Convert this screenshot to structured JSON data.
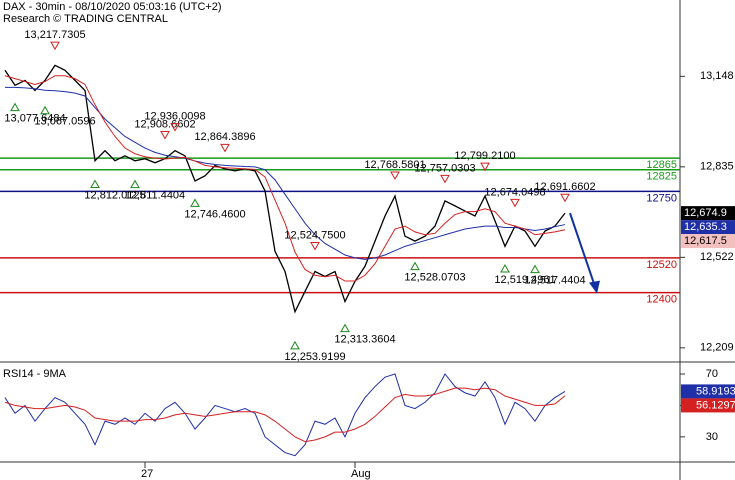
{
  "chart_data": [
    {
      "type": "line",
      "title": "DAX - 30min - 08/10/2020 05:03:16 (UTC+2)",
      "subtitle": "Research © TRADING CENTRAL",
      "categories": [
        null,
        null,
        null,
        null,
        null,
        null,
        null,
        null,
        null,
        null,
        null,
        null,
        null,
        null,
        "27",
        null,
        null,
        null,
        null,
        null,
        null,
        null,
        null,
        null,
        null,
        null,
        null,
        null,
        null,
        null,
        null,
        null,
        null,
        null,
        null,
        "Aug",
        null,
        null,
        null,
        null,
        null,
        null,
        null,
        null,
        null,
        null,
        null,
        null,
        null,
        null,
        null,
        null,
        null,
        null,
        null,
        null,
        null
      ],
      "series": [
        {
          "color": "#000000",
          "label_color": "#ffffff",
          "values": [
            13169,
            13117,
            13134,
            13099,
            13134,
            13186,
            13169,
            13134,
            13099,
            12856,
            12891,
            12856,
            12873,
            12856,
            12863,
            12849,
            12863,
            12891,
            12873,
            12786,
            12804,
            12839,
            12828,
            12821,
            12828,
            12821,
            12752,
            12543,
            12473,
            12334,
            12404,
            12473,
            12456,
            12473,
            12369,
            12439,
            12491,
            12578,
            12665,
            12734,
            12595,
            12578,
            12595,
            12630,
            12717,
            12700,
            12682,
            12665,
            12734,
            12648,
            12560,
            12630,
            12613,
            12560,
            12613,
            12630,
            12674.9
          ],
          "value_labels": [
            null,
            null,
            null,
            null,
            null,
            null,
            null,
            null,
            null,
            null,
            null,
            null,
            null,
            null,
            null,
            null,
            null,
            null,
            null,
            null,
            null,
            null,
            null,
            null,
            null,
            null,
            null,
            null,
            null,
            null,
            null,
            null,
            null,
            null,
            null,
            null,
            null,
            null,
            null,
            null,
            null,
            null,
            null,
            null,
            null,
            null,
            null,
            null,
            null,
            null,
            null,
            null,
            null,
            null,
            null,
            null,
            "12,674.9"
          ]
        },
        {
          "color": "#1f2fa8",
          "label_color": "#ffffff",
          "values": [
            13110,
            13110,
            13108,
            13105,
            13100,
            13098,
            13095,
            13090,
            13080,
            13040,
            13000,
            12970,
            12940,
            12920,
            12900,
            12885,
            12875,
            12870,
            12865,
            12855,
            12848,
            12843,
            12840,
            12838,
            12836,
            12835,
            12825,
            12790,
            12740,
            12690,
            12640,
            12600,
            12570,
            12550,
            12530,
            12520,
            12515,
            12520,
            12530,
            12545,
            12560,
            12570,
            12580,
            12590,
            12600,
            12610,
            12620,
            12625,
            12630,
            12630,
            12625,
            12625,
            12620,
            12615,
            12620,
            12628,
            12635.3
          ],
          "value_labels": [
            null,
            null,
            null,
            null,
            null,
            null,
            null,
            null,
            null,
            null,
            null,
            null,
            null,
            null,
            null,
            null,
            null,
            null,
            null,
            null,
            null,
            null,
            null,
            null,
            null,
            null,
            null,
            null,
            null,
            null,
            null,
            null,
            null,
            null,
            null,
            null,
            null,
            null,
            null,
            null,
            null,
            null,
            null,
            null,
            null,
            null,
            null,
            null,
            null,
            null,
            null,
            null,
            null,
            null,
            null,
            null,
            "12,635.3"
          ]
        },
        {
          "color": "#d42020",
          "label_color": "#000000",
          "values": [
            13150,
            13140,
            13130,
            13120,
            13130,
            13150,
            13150,
            13140,
            13120,
            13050,
            12990,
            12940,
            12900,
            12880,
            12870,
            12865,
            12862,
            12865,
            12868,
            12855,
            12840,
            12835,
            12832,
            12830,
            12828,
            12826,
            12800,
            12720,
            12640,
            12540,
            12480,
            12460,
            12455,
            12460,
            12440,
            12440,
            12460,
            12500,
            12560,
            12620,
            12630,
            12610,
            12600,
            12605,
            12640,
            12670,
            12680,
            12680,
            12690,
            12680,
            12640,
            12630,
            12620,
            12600,
            12605,
            12610,
            12617.5
          ],
          "value_labels": [
            null,
            null,
            null,
            null,
            null,
            null,
            null,
            null,
            null,
            null,
            null,
            null,
            null,
            null,
            null,
            null,
            null,
            null,
            null,
            null,
            null,
            null,
            null,
            null,
            null,
            null,
            null,
            null,
            null,
            null,
            null,
            null,
            null,
            null,
            null,
            null,
            null,
            null,
            null,
            null,
            null,
            null,
            null,
            null,
            null,
            null,
            null,
            null,
            null,
            null,
            null,
            null,
            null,
            null,
            null,
            null,
            "12,617.5"
          ]
        }
      ],
      "ylim": [
        12160,
        13412
      ],
      "yticks": [
        {
          "value": 12209,
          "label": "12,209"
        },
        {
          "value": 12522,
          "label": "12,522"
        },
        {
          "value": 12835,
          "label": "12,835"
        },
        {
          "value": 13148,
          "label": "13,148"
        }
      ],
      "levels": [
        {
          "value": 12865,
          "color": "#1a9a1a"
        },
        {
          "value": 12825,
          "color": "#1a9a1a"
        },
        {
          "value": 12750,
          "color": "#10108a"
        },
        {
          "value": 12520,
          "color": "#cc1010"
        },
        {
          "value": 12400,
          "color": "#cc1010"
        }
      ],
      "annotations": [
        {
          "x": 5,
          "value": 13217.7305,
          "label": "13,217.7305",
          "kind": "high"
        },
        {
          "x": 1,
          "value": 13077.6484,
          "label": "13,077.6484",
          "kind": "low"
        },
        {
          "x": 4,
          "value": 13067.0596,
          "label": "13,067.0596",
          "kind": "low"
        },
        {
          "x": 9,
          "value": 12812.0125,
          "label": "12,812.0125",
          "kind": "low"
        },
        {
          "x": 13,
          "value": 12811.4404,
          "label": "12,811.4404",
          "kind": "low"
        },
        {
          "x": 16,
          "value": 12908.6602,
          "label": "12,908.6602",
          "kind": "high"
        },
        {
          "x": 17,
          "value": 12936.0098,
          "label": "12,936.0098",
          "kind": "high"
        },
        {
          "x": 19,
          "value": 12746.46,
          "label": "12,746.4600",
          "kind": "low"
        },
        {
          "x": 22,
          "value": 12864.3896,
          "label": "12,864.3896",
          "kind": "high"
        },
        {
          "x": 29,
          "value": 12253.9199,
          "label": "12,253.9199",
          "kind": "low"
        },
        {
          "x": 31,
          "value": 12524.75,
          "label": "12,524.7500",
          "kind": "high"
        },
        {
          "x": 34,
          "value": 12313.3604,
          "label": "12,313.3604",
          "kind": "low"
        },
        {
          "x": 39,
          "value": 12768.5801,
          "label": "12,768.5801",
          "kind": "high"
        },
        {
          "x": 41,
          "value": 12528.0703,
          "label": "12,528.0703",
          "kind": "low"
        },
        {
          "x": 44,
          "value": 12757.0303,
          "label": "12,757.0303",
          "kind": "high"
        },
        {
          "x": 48,
          "value": 12799.21,
          "label": "12,799.2100",
          "kind": "high"
        },
        {
          "x": 51,
          "value": 12674.0498,
          "label": "12,674.0498",
          "kind": "high"
        },
        {
          "x": 50,
          "value": 12519.4961,
          "label": "12,519.4961",
          "kind": "low"
        },
        {
          "x": 53,
          "value": 12517.4404,
          "label": "12,517.4404",
          "kind": "low"
        },
        {
          "x": 56,
          "value": 12691.6602,
          "label": "12,691.6602",
          "kind": "high"
        }
      ]
    },
    {
      "type": "line",
      "title": "RSI14 - 9MA",
      "series": [
        {
          "color": "#1f2fa8",
          "label_color": "#ffffff",
          "values": [
            55,
            45,
            50,
            40,
            48,
            55,
            52,
            45,
            38,
            25,
            40,
            38,
            42,
            38,
            45,
            40,
            48,
            52,
            45,
            35,
            42,
            50,
            48,
            46,
            48,
            45,
            30,
            25,
            20,
            18,
            25,
            40,
            38,
            42,
            30,
            45,
            55,
            62,
            68,
            70,
            50,
            48,
            52,
            58,
            70,
            62,
            58,
            56,
            65,
            55,
            38,
            52,
            48,
            40,
            50,
            55,
            58.9193
          ]
        },
        {
          "color": "#d42020",
          "label_color": "#ffffff",
          "values": [
            52,
            50,
            49,
            48,
            48,
            49,
            50,
            49,
            47,
            42,
            41,
            40,
            40,
            40,
            41,
            41,
            42,
            44,
            45,
            44,
            43,
            44,
            45,
            46,
            46,
            46,
            44,
            40,
            35,
            30,
            27,
            28,
            30,
            33,
            33,
            35,
            38,
            43,
            49,
            55,
            57,
            56,
            56,
            57,
            59,
            61,
            61,
            60,
            61,
            60,
            56,
            54,
            52,
            50,
            50,
            51,
            56.1297
          ]
        }
      ],
      "ylim": [
        14,
        77
      ],
      "yticks": [
        30,
        50,
        70
      ]
    }
  ]
}
